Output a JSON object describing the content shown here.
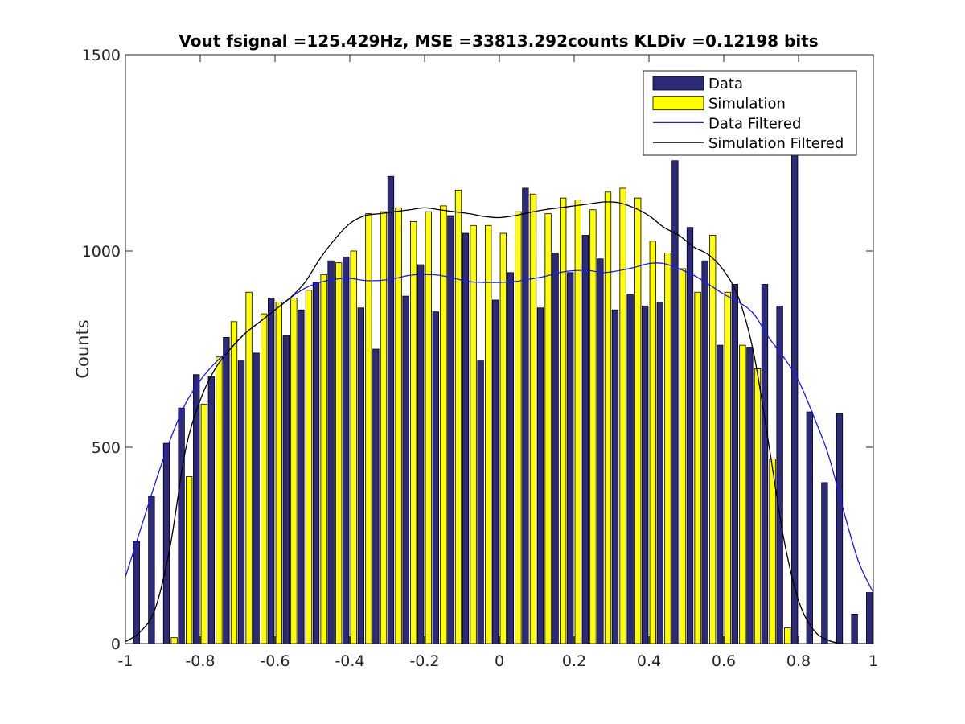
{
  "chart_data": {
    "type": "bar",
    "title": "Vout fsignal =125.429Hz, MSE =33813.292counts KLDiv =0.12198 bits",
    "xlabel": "",
    "ylabel": "Counts",
    "xlim": [
      -1,
      1
    ],
    "ylim": [
      0,
      1500
    ],
    "xticks": [
      "-1",
      "-0.8",
      "-0.6",
      "-0.4",
      "-0.2",
      "0",
      "0.2",
      "0.4",
      "0.6",
      "0.8",
      "1"
    ],
    "xtick_values": [
      -1,
      -0.8,
      -0.6,
      -0.4,
      -0.2,
      0,
      0.2,
      0.4,
      0.6,
      0.8,
      1
    ],
    "yticks": [
      "0",
      "500",
      "1000",
      "1500"
    ],
    "ytick_values": [
      0,
      500,
      1000,
      1500
    ],
    "grid": false,
    "legend_position": "top-right",
    "x": [
      -0.96,
      -0.92,
      -0.88,
      -0.84,
      -0.8,
      -0.76,
      -0.72,
      -0.68,
      -0.64,
      -0.6,
      -0.56,
      -0.52,
      -0.48,
      -0.44,
      -0.4,
      -0.36,
      -0.32,
      -0.28,
      -0.24,
      -0.2,
      -0.16,
      -0.12,
      -0.08,
      -0.04,
      0,
      0.04,
      0.08,
      0.12,
      0.16,
      0.2,
      0.24,
      0.28,
      0.32,
      0.36,
      0.4,
      0.44,
      0.48,
      0.52,
      0.56,
      0.6,
      0.64,
      0.68,
      0.72,
      0.76,
      0.8,
      0.84,
      0.88,
      0.92,
      0.96,
      1.0
    ],
    "series": [
      {
        "name": "Data",
        "kind": "bar",
        "color": "#2e2a7a",
        "values": [
          260,
          375,
          510,
          600,
          685,
          680,
          780,
          720,
          740,
          880,
          785,
          850,
          920,
          975,
          985,
          855,
          750,
          1190,
          885,
          965,
          845,
          1090,
          1045,
          720,
          875,
          945,
          1160,
          855,
          995,
          945,
          1040,
          980,
          850,
          890,
          860,
          870,
          1230,
          1060,
          975,
          760,
          915,
          755,
          915,
          860,
          1260,
          590,
          410,
          585,
          75,
          130
        ]
      },
      {
        "name": "Simulation",
        "kind": "bar",
        "color": "#ffff00",
        "values": [
          0,
          0,
          15,
          425,
          610,
          730,
          820,
          895,
          840,
          870,
          880,
          900,
          940,
          970,
          1000,
          1095,
          1100,
          1110,
          1075,
          1100,
          1115,
          1155,
          1065,
          1065,
          1045,
          1100,
          1145,
          1095,
          1135,
          1130,
          1105,
          1150,
          1160,
          1135,
          1025,
          995,
          955,
          895,
          1040,
          895,
          760,
          700,
          470,
          40,
          0,
          0,
          0,
          0,
          0,
          0
        ]
      },
      {
        "name": "Data Filtered",
        "kind": "line",
        "color": "#1a1aff",
        "x": [
          -1,
          -0.96,
          -0.92,
          -0.88,
          -0.84,
          -0.8,
          -0.76,
          -0.72,
          -0.68,
          -0.64,
          -0.6,
          -0.56,
          -0.52,
          -0.48,
          -0.44,
          -0.4,
          -0.36,
          -0.32,
          -0.28,
          -0.24,
          -0.2,
          -0.16,
          -0.12,
          -0.08,
          -0.04,
          0,
          0.04,
          0.08,
          0.12,
          0.16,
          0.2,
          0.24,
          0.28,
          0.32,
          0.36,
          0.4,
          0.44,
          0.48,
          0.52,
          0.56,
          0.6,
          0.64,
          0.68,
          0.72,
          0.76,
          0.8,
          0.84,
          0.88,
          0.92,
          0.96,
          1.0
        ],
        "values": [
          170,
          290,
          410,
          520,
          610,
          670,
          715,
          750,
          790,
          820,
          850,
          880,
          905,
          920,
          928,
          930,
          925,
          925,
          930,
          938,
          940,
          938,
          930,
          922,
          920,
          920,
          922,
          928,
          935,
          945,
          950,
          950,
          945,
          950,
          958,
          968,
          968,
          955,
          938,
          915,
          890,
          870,
          840,
          780,
          730,
          670,
          580,
          480,
          340,
          210,
          130
        ]
      },
      {
        "name": "Simulation Filtered",
        "kind": "line",
        "color": "#000000",
        "x": [
          -1,
          -0.96,
          -0.92,
          -0.88,
          -0.84,
          -0.8,
          -0.76,
          -0.72,
          -0.68,
          -0.64,
          -0.6,
          -0.56,
          -0.52,
          -0.48,
          -0.44,
          -0.4,
          -0.36,
          -0.32,
          -0.28,
          -0.24,
          -0.2,
          -0.16,
          -0.12,
          -0.08,
          -0.04,
          0,
          0.04,
          0.08,
          0.12,
          0.16,
          0.2,
          0.24,
          0.28,
          0.32,
          0.36,
          0.4,
          0.44,
          0.48,
          0.52,
          0.56,
          0.6,
          0.64,
          0.68,
          0.72,
          0.76,
          0.8,
          0.84,
          0.88,
          0.92,
          0.96,
          1.0
        ],
        "values": [
          5,
          30,
          90,
          250,
          490,
          620,
          700,
          750,
          790,
          820,
          850,
          880,
          920,
          980,
          1030,
          1070,
          1090,
          1095,
          1100,
          1105,
          1110,
          1105,
          1100,
          1095,
          1088,
          1085,
          1090,
          1098,
          1105,
          1110,
          1115,
          1120,
          1125,
          1123,
          1110,
          1090,
          1060,
          1040,
          1010,
          990,
          950,
          880,
          740,
          510,
          270,
          110,
          35,
          8,
          0,
          0,
          0
        ]
      }
    ]
  },
  "legend": {
    "items": [
      {
        "label": "Data",
        "kind": "bar",
        "color": "#2e2a7a"
      },
      {
        "label": "Simulation",
        "kind": "bar",
        "color": "#ffff00"
      },
      {
        "label": "Data Filtered",
        "kind": "line",
        "color": "#1a1aff"
      },
      {
        "label": "Simulation Filtered",
        "kind": "line",
        "color": "#000000"
      }
    ]
  }
}
